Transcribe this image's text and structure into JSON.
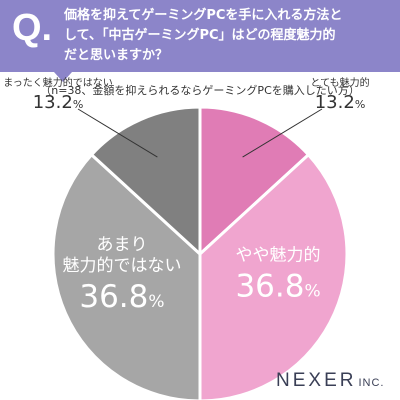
{
  "header": {
    "q_mark": "Q.",
    "question_lines": [
      "価格を抑えてゲーミングPCを手に入れる方法と",
      "して、「中古ゲーミングPC」はどの程度魅力的",
      "だと思いますか？"
    ]
  },
  "subtitle": "（n=38、金額を抑えられるならゲーミングPCを購入したい方）",
  "chart_data": {
    "type": "pie",
    "slices": [
      {
        "label": "とても魅力的",
        "value": 13.2,
        "color": "#e07cb5",
        "label_style": "outside"
      },
      {
        "label": "やや魅力的",
        "value": 36.8,
        "color": "#f0a5cf",
        "label_style": "inside"
      },
      {
        "label": "あまり 魅力的ではない",
        "value": 36.8,
        "color": "#a6a6a6",
        "label_style": "inside"
      },
      {
        "label": "まったく魅力的ではない",
        "value": 13.2,
        "color": "#808080",
        "label_style": "outside"
      }
    ],
    "value_suffix": "%",
    "start": "12 o'clock",
    "direction": "clockwise"
  },
  "brand": {
    "name": "NEXER",
    "suffix": "INC."
  }
}
